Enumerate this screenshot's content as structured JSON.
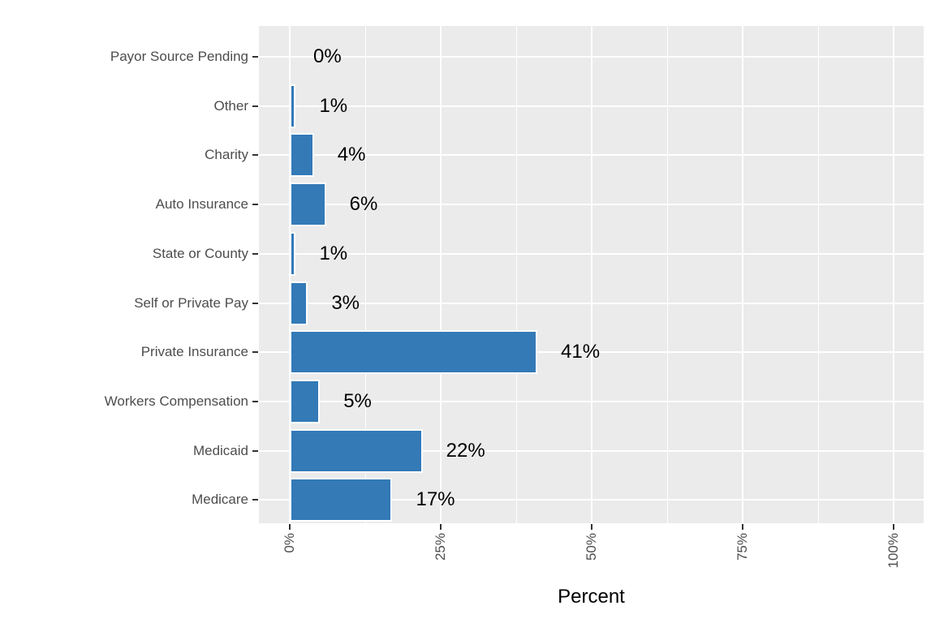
{
  "chart_data": {
    "type": "bar",
    "orientation": "horizontal",
    "title": "",
    "xlabel": "Percent",
    "ylabel": "",
    "categories_top_to_bottom": [
      "Payor Source Pending",
      "Other",
      "Charity",
      "Auto Insurance",
      "State or County",
      "Self or Private Pay",
      "Private Insurance",
      "Workers Compensation",
      "Medicaid",
      "Medicare"
    ],
    "values": [
      0,
      1,
      4,
      6,
      1,
      3,
      41,
      5,
      22,
      17
    ],
    "value_labels": [
      "0%",
      "1%",
      "4%",
      "6%",
      "1%",
      "3%",
      "41%",
      "5%",
      "22%",
      "17%"
    ],
    "x_ticks": [
      {
        "value": 0,
        "label": "0%"
      },
      {
        "value": 25,
        "label": "25%"
      },
      {
        "value": 50,
        "label": "50%"
      },
      {
        "value": 75,
        "label": "75%"
      },
      {
        "value": 100,
        "label": "100%"
      }
    ],
    "x_minor_gridlines": [
      12.5,
      37.5,
      62.5,
      87.5
    ],
    "xlim": [
      0,
      100
    ],
    "grid": true,
    "legend": "none",
    "colors": {
      "bar_fill": "#337AB7",
      "bar_border": "#FFFFFF",
      "panel_background": "#EBEBEB",
      "gridline": "#FFFFFF",
      "axis_text": "#4D4D4D",
      "tick_mark": "#333333",
      "value_label_text": "#000000",
      "axis_title_text": "#000000",
      "figure_background": "#FFFFFF"
    }
  }
}
